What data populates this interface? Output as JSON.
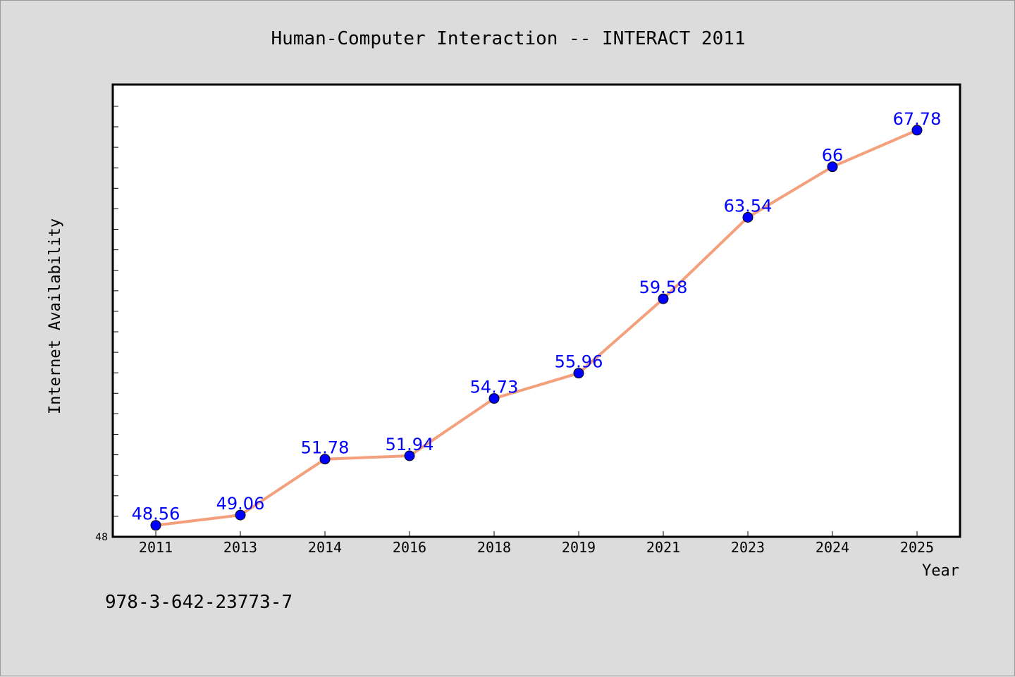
{
  "chart_data": {
    "type": "line",
    "title": "Human-Computer Interaction -- INTERACT 2011",
    "xlabel": "Year",
    "ylabel": "Internet Availability",
    "categories": [
      "2011",
      "2013",
      "2014",
      "2016",
      "2018",
      "2019",
      "2021",
      "2023",
      "2024",
      "2025"
    ],
    "values": [
      48.56,
      49.06,
      51.78,
      51.94,
      54.73,
      55.96,
      59.58,
      63.54,
      66,
      67.78
    ],
    "data_labels": [
      "48.56",
      "49.06",
      "51.78",
      "51.94",
      "54.73",
      "55.96",
      "59.58",
      "63.54",
      "66",
      "67.78"
    ],
    "ylim": [
      48,
      70
    ],
    "y_tick_labels": [
      "48"
    ],
    "line_color": "#f4a07c",
    "marker_color": "#0000ff",
    "label_color": "#0000ff",
    "grid": false,
    "legend": "none"
  },
  "footer": {
    "isbn": "978-3-642-23773-7"
  }
}
